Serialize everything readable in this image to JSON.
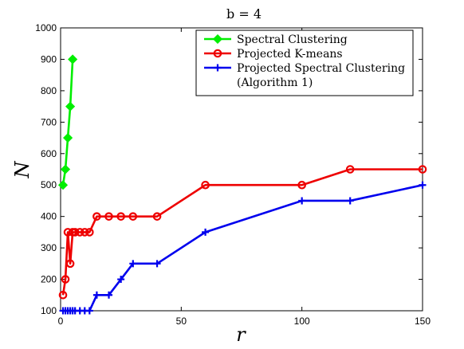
{
  "chart_data": {
    "type": "line",
    "title": "b = 4",
    "xlabel": "r",
    "ylabel": "N",
    "xlim": [
      0,
      150
    ],
    "ylim": [
      100,
      1000
    ],
    "xticks": [
      0,
      50,
      100,
      150
    ],
    "yticks": [
      100,
      200,
      300,
      400,
      500,
      600,
      700,
      800,
      900,
      1000
    ],
    "grid": false,
    "legend_position": "top-right",
    "series": [
      {
        "name": "Spectral Clustering",
        "color": "#00ee00",
        "marker": "diamond",
        "x": [
          1,
          2,
          3,
          4,
          5
        ],
        "y": [
          500,
          550,
          650,
          750,
          900
        ]
      },
      {
        "name": "Projected K-means",
        "color": "#ee0000",
        "marker": "circle",
        "x": [
          1,
          2,
          3,
          4,
          5,
          6,
          8,
          10,
          12,
          15,
          20,
          25,
          30,
          40,
          60,
          100,
          120,
          150
        ],
        "y": [
          150,
          200,
          350,
          250,
          350,
          350,
          350,
          350,
          350,
          400,
          400,
          400,
          400,
          400,
          500,
          500,
          550,
          550
        ]
      },
      {
        "name": "Projected Spectral Clustering",
        "name_line2": "(Algorithm 1)",
        "color": "#0000ee",
        "marker": "plus",
        "x": [
          1,
          2,
          3,
          4,
          5,
          6,
          8,
          10,
          12,
          15,
          20,
          25,
          30,
          40,
          60,
          100,
          120,
          150
        ],
        "y": [
          100,
          100,
          100,
          100,
          100,
          100,
          100,
          100,
          100,
          150,
          150,
          200,
          250,
          250,
          350,
          450,
          450,
          500
        ]
      }
    ]
  }
}
